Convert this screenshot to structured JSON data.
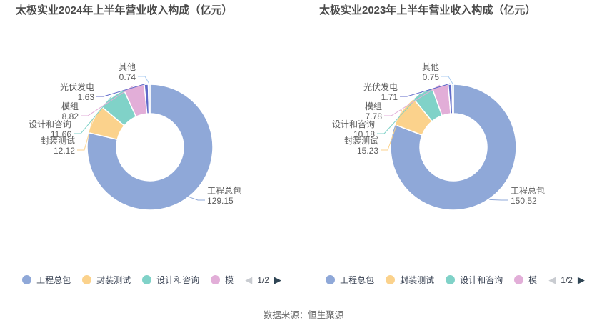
{
  "source_note": "数据来源：恒生聚源",
  "legend": {
    "visible_items": [
      "工程总包",
      "封装测试",
      "设计和咨询",
      "模"
    ],
    "page_indicator": "1/2",
    "prev_icon": "◀",
    "next_icon": "▶"
  },
  "chart_data": [
    {
      "type": "pie",
      "subtype": "donut",
      "title": "太极实业2024年上半年营业收入构成（亿元）",
      "unit": "亿元",
      "categories": [
        "工程总包",
        "封装测试",
        "设计和咨询",
        "模组",
        "光伏发电",
        "其他"
      ],
      "values": [
        129.15,
        12.12,
        11.66,
        8.82,
        1.63,
        0.74
      ],
      "colors": [
        "#8FA8D8",
        "#FBD28C",
        "#80D2C8",
        "#E2AED8",
        "#5F6AC9",
        "#A8CBF0"
      ],
      "legend_position": "bottom",
      "labels_shown": true
    },
    {
      "type": "pie",
      "subtype": "donut",
      "title": "太极实业2023年上半年营业收入构成（亿元）",
      "unit": "亿元",
      "categories": [
        "工程总包",
        "封装测试",
        "设计和咨询",
        "模组",
        "光伏发电",
        "其他"
      ],
      "values": [
        150.52,
        15.23,
        10.18,
        7.78,
        1.71,
        0.75
      ],
      "colors": [
        "#8FA8D8",
        "#FBD28C",
        "#80D2C8",
        "#E2AED8",
        "#5F6AC9",
        "#A8CBF0"
      ],
      "legend_position": "bottom",
      "labels_shown": true
    }
  ]
}
